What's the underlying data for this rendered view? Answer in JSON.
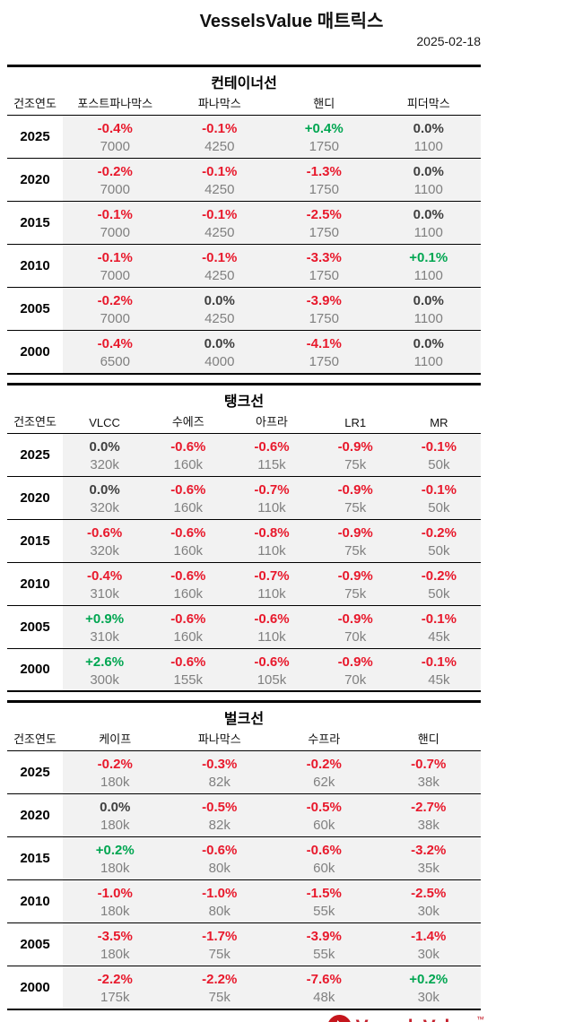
{
  "header": {
    "title": "VesselsValue 매트릭스",
    "date": "2025-02-18"
  },
  "colors": {
    "negative_pct": "#e8192c",
    "positive_pct": "#00a651",
    "zero_pct": "#404040",
    "value_gray": "#808080",
    "cell_background": "#f2f2f2",
    "brand_red": "#c5202c"
  },
  "chart_data": [
    {
      "type": "table",
      "title": "컨테이너선",
      "year_header": "건조연도",
      "columns": [
        "포스트파나막스",
        "파나막스",
        "핸디",
        "피더막스"
      ],
      "rows": [
        {
          "year": "2025",
          "cells": [
            {
              "pct": "-0.4%",
              "value": "7000"
            },
            {
              "pct": "-0.1%",
              "value": "4250"
            },
            {
              "pct": "+0.4%",
              "value": "1750"
            },
            {
              "pct": "0.0%",
              "value": "1100"
            }
          ]
        },
        {
          "year": "2020",
          "cells": [
            {
              "pct": "-0.2%",
              "value": "7000"
            },
            {
              "pct": "-0.1%",
              "value": "4250"
            },
            {
              "pct": "-1.3%",
              "value": "1750"
            },
            {
              "pct": "0.0%",
              "value": "1100"
            }
          ]
        },
        {
          "year": "2015",
          "cells": [
            {
              "pct": "-0.1%",
              "value": "7000"
            },
            {
              "pct": "-0.1%",
              "value": "4250"
            },
            {
              "pct": "-2.5%",
              "value": "1750"
            },
            {
              "pct": "0.0%",
              "value": "1100"
            }
          ]
        },
        {
          "year": "2010",
          "cells": [
            {
              "pct": "-0.1%",
              "value": "7000"
            },
            {
              "pct": "-0.1%",
              "value": "4250"
            },
            {
              "pct": "-3.3%",
              "value": "1750"
            },
            {
              "pct": "+0.1%",
              "value": "1100"
            }
          ]
        },
        {
          "year": "2005",
          "cells": [
            {
              "pct": "-0.2%",
              "value": "7000"
            },
            {
              "pct": "0.0%",
              "value": "4250"
            },
            {
              "pct": "-3.9%",
              "value": "1750"
            },
            {
              "pct": "0.0%",
              "value": "1100"
            }
          ]
        },
        {
          "year": "2000",
          "cells": [
            {
              "pct": "-0.4%",
              "value": "6500"
            },
            {
              "pct": "0.0%",
              "value": "4000"
            },
            {
              "pct": "-4.1%",
              "value": "1750"
            },
            {
              "pct": "0.0%",
              "value": "1100"
            }
          ]
        }
      ]
    },
    {
      "type": "table",
      "title": "탱크선",
      "year_header": "건조연도",
      "columns": [
        "VLCC",
        "수에즈",
        "아프라",
        "LR1",
        "MR"
      ],
      "rows": [
        {
          "year": "2025",
          "cells": [
            {
              "pct": "0.0%",
              "value": "320k"
            },
            {
              "pct": "-0.6%",
              "value": "160k"
            },
            {
              "pct": "-0.6%",
              "value": "115k"
            },
            {
              "pct": "-0.9%",
              "value": "75k"
            },
            {
              "pct": "-0.1%",
              "value": "50k"
            }
          ]
        },
        {
          "year": "2020",
          "cells": [
            {
              "pct": "0.0%",
              "value": "320k"
            },
            {
              "pct": "-0.6%",
              "value": "160k"
            },
            {
              "pct": "-0.7%",
              "value": "110k"
            },
            {
              "pct": "-0.9%",
              "value": "75k"
            },
            {
              "pct": "-0.1%",
              "value": "50k"
            }
          ]
        },
        {
          "year": "2015",
          "cells": [
            {
              "pct": "-0.6%",
              "value": "320k"
            },
            {
              "pct": "-0.6%",
              "value": "160k"
            },
            {
              "pct": "-0.8%",
              "value": "110k"
            },
            {
              "pct": "-0.9%",
              "value": "75k"
            },
            {
              "pct": "-0.2%",
              "value": "50k"
            }
          ]
        },
        {
          "year": "2010",
          "cells": [
            {
              "pct": "-0.4%",
              "value": "310k"
            },
            {
              "pct": "-0.6%",
              "value": "160k"
            },
            {
              "pct": "-0.7%",
              "value": "110k"
            },
            {
              "pct": "-0.9%",
              "value": "75k"
            },
            {
              "pct": "-0.2%",
              "value": "50k"
            }
          ]
        },
        {
          "year": "2005",
          "cells": [
            {
              "pct": "+0.9%",
              "value": "310k"
            },
            {
              "pct": "-0.6%",
              "value": "160k"
            },
            {
              "pct": "-0.6%",
              "value": "110k"
            },
            {
              "pct": "-0.9%",
              "value": "70k"
            },
            {
              "pct": "-0.1%",
              "value": "45k"
            }
          ]
        },
        {
          "year": "2000",
          "cells": [
            {
              "pct": "+2.6%",
              "value": "300k"
            },
            {
              "pct": "-0.6%",
              "value": "155k"
            },
            {
              "pct": "-0.6%",
              "value": "105k"
            },
            {
              "pct": "-0.9%",
              "value": "70k"
            },
            {
              "pct": "-0.1%",
              "value": "45k"
            }
          ]
        }
      ]
    },
    {
      "type": "table",
      "title": "벌크선",
      "year_header": "건조연도",
      "columns": [
        "케이프",
        "파나막스",
        "수프라",
        "핸디"
      ],
      "rows": [
        {
          "year": "2025",
          "cells": [
            {
              "pct": "-0.2%",
              "value": "180k"
            },
            {
              "pct": "-0.3%",
              "value": "82k"
            },
            {
              "pct": "-0.2%",
              "value": "62k"
            },
            {
              "pct": "-0.7%",
              "value": "38k"
            }
          ]
        },
        {
          "year": "2020",
          "cells": [
            {
              "pct": "0.0%",
              "value": "180k"
            },
            {
              "pct": "-0.5%",
              "value": "82k"
            },
            {
              "pct": "-0.5%",
              "value": "60k"
            },
            {
              "pct": "-2.7%",
              "value": "38k"
            }
          ]
        },
        {
          "year": "2015",
          "cells": [
            {
              "pct": "+0.2%",
              "value": "180k"
            },
            {
              "pct": "-0.6%",
              "value": "80k"
            },
            {
              "pct": "-0.6%",
              "value": "60k"
            },
            {
              "pct": "-3.2%",
              "value": "35k"
            }
          ]
        },
        {
          "year": "2010",
          "cells": [
            {
              "pct": "-1.0%",
              "value": "180k"
            },
            {
              "pct": "-1.0%",
              "value": "80k"
            },
            {
              "pct": "-1.5%",
              "value": "55k"
            },
            {
              "pct": "-2.5%",
              "value": "30k"
            }
          ]
        },
        {
          "year": "2005",
          "cells": [
            {
              "pct": "-3.5%",
              "value": "180k"
            },
            {
              "pct": "-1.7%",
              "value": "75k"
            },
            {
              "pct": "-3.9%",
              "value": "55k"
            },
            {
              "pct": "-1.4%",
              "value": "30k"
            }
          ]
        },
        {
          "year": "2000",
          "cells": [
            {
              "pct": "-2.2%",
              "value": "175k"
            },
            {
              "pct": "-2.2%",
              "value": "75k"
            },
            {
              "pct": "-7.6%",
              "value": "48k"
            },
            {
              "pct": "+0.2%",
              "value": "30k"
            }
          ]
        }
      ]
    }
  ],
  "footer": {
    "logo_text": "VesselsValue",
    "trademark": "™"
  }
}
